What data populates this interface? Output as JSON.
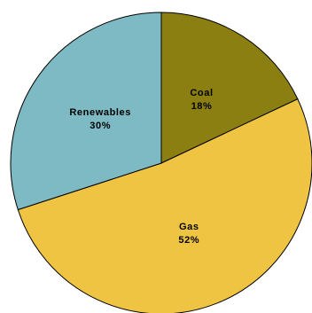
{
  "chart_data": {
    "type": "pie",
    "start_angle_deg": 0,
    "direction": "clockwise",
    "slices": [
      {
        "label": "Coal",
        "value": 18,
        "value_label": "18%",
        "color": "#8A7F10"
      },
      {
        "label": "Gas",
        "value": 52,
        "value_label": "52%",
        "color": "#F0C443"
      },
      {
        "label": "Renewables",
        "value": 30,
        "value_label": "30%",
        "color": "#7DBAC4"
      }
    ]
  }
}
